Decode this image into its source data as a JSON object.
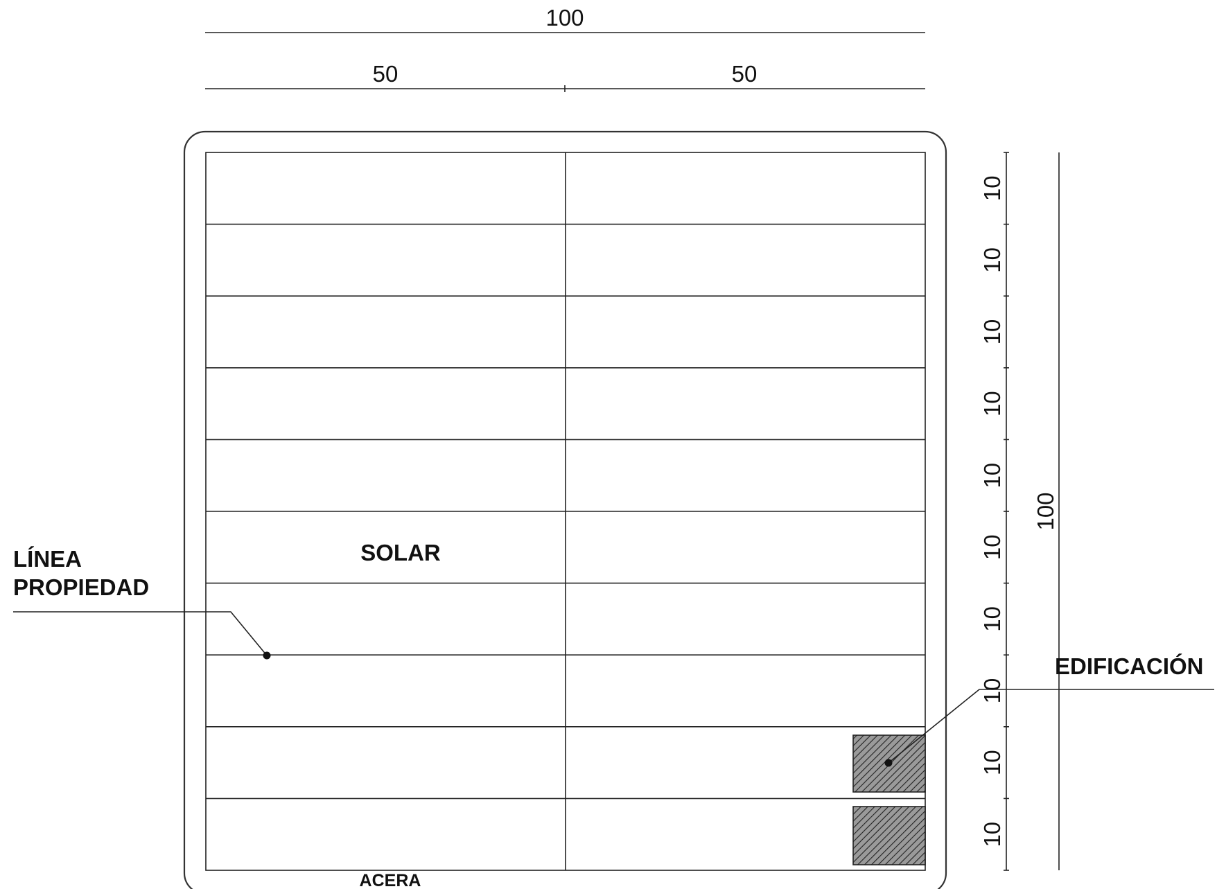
{
  "dimensions": {
    "top_total": "100",
    "top_left_half": "50",
    "top_right_half": "50",
    "right_rows": [
      "10",
      "10",
      "10",
      "10",
      "10",
      "10",
      "10",
      "10",
      "10",
      "10"
    ],
    "right_total": "100"
  },
  "labels": {
    "solar": "SOLAR",
    "acera": "ACERA",
    "linea_line1": "LÍNEA",
    "linea_line2": "PROPIEDAD",
    "edificacion": "EDIFICACIÓN"
  },
  "colors": {
    "line": "#222222",
    "hatch_fill": "#8a8a8a",
    "hatch_stroke": "#222222"
  }
}
